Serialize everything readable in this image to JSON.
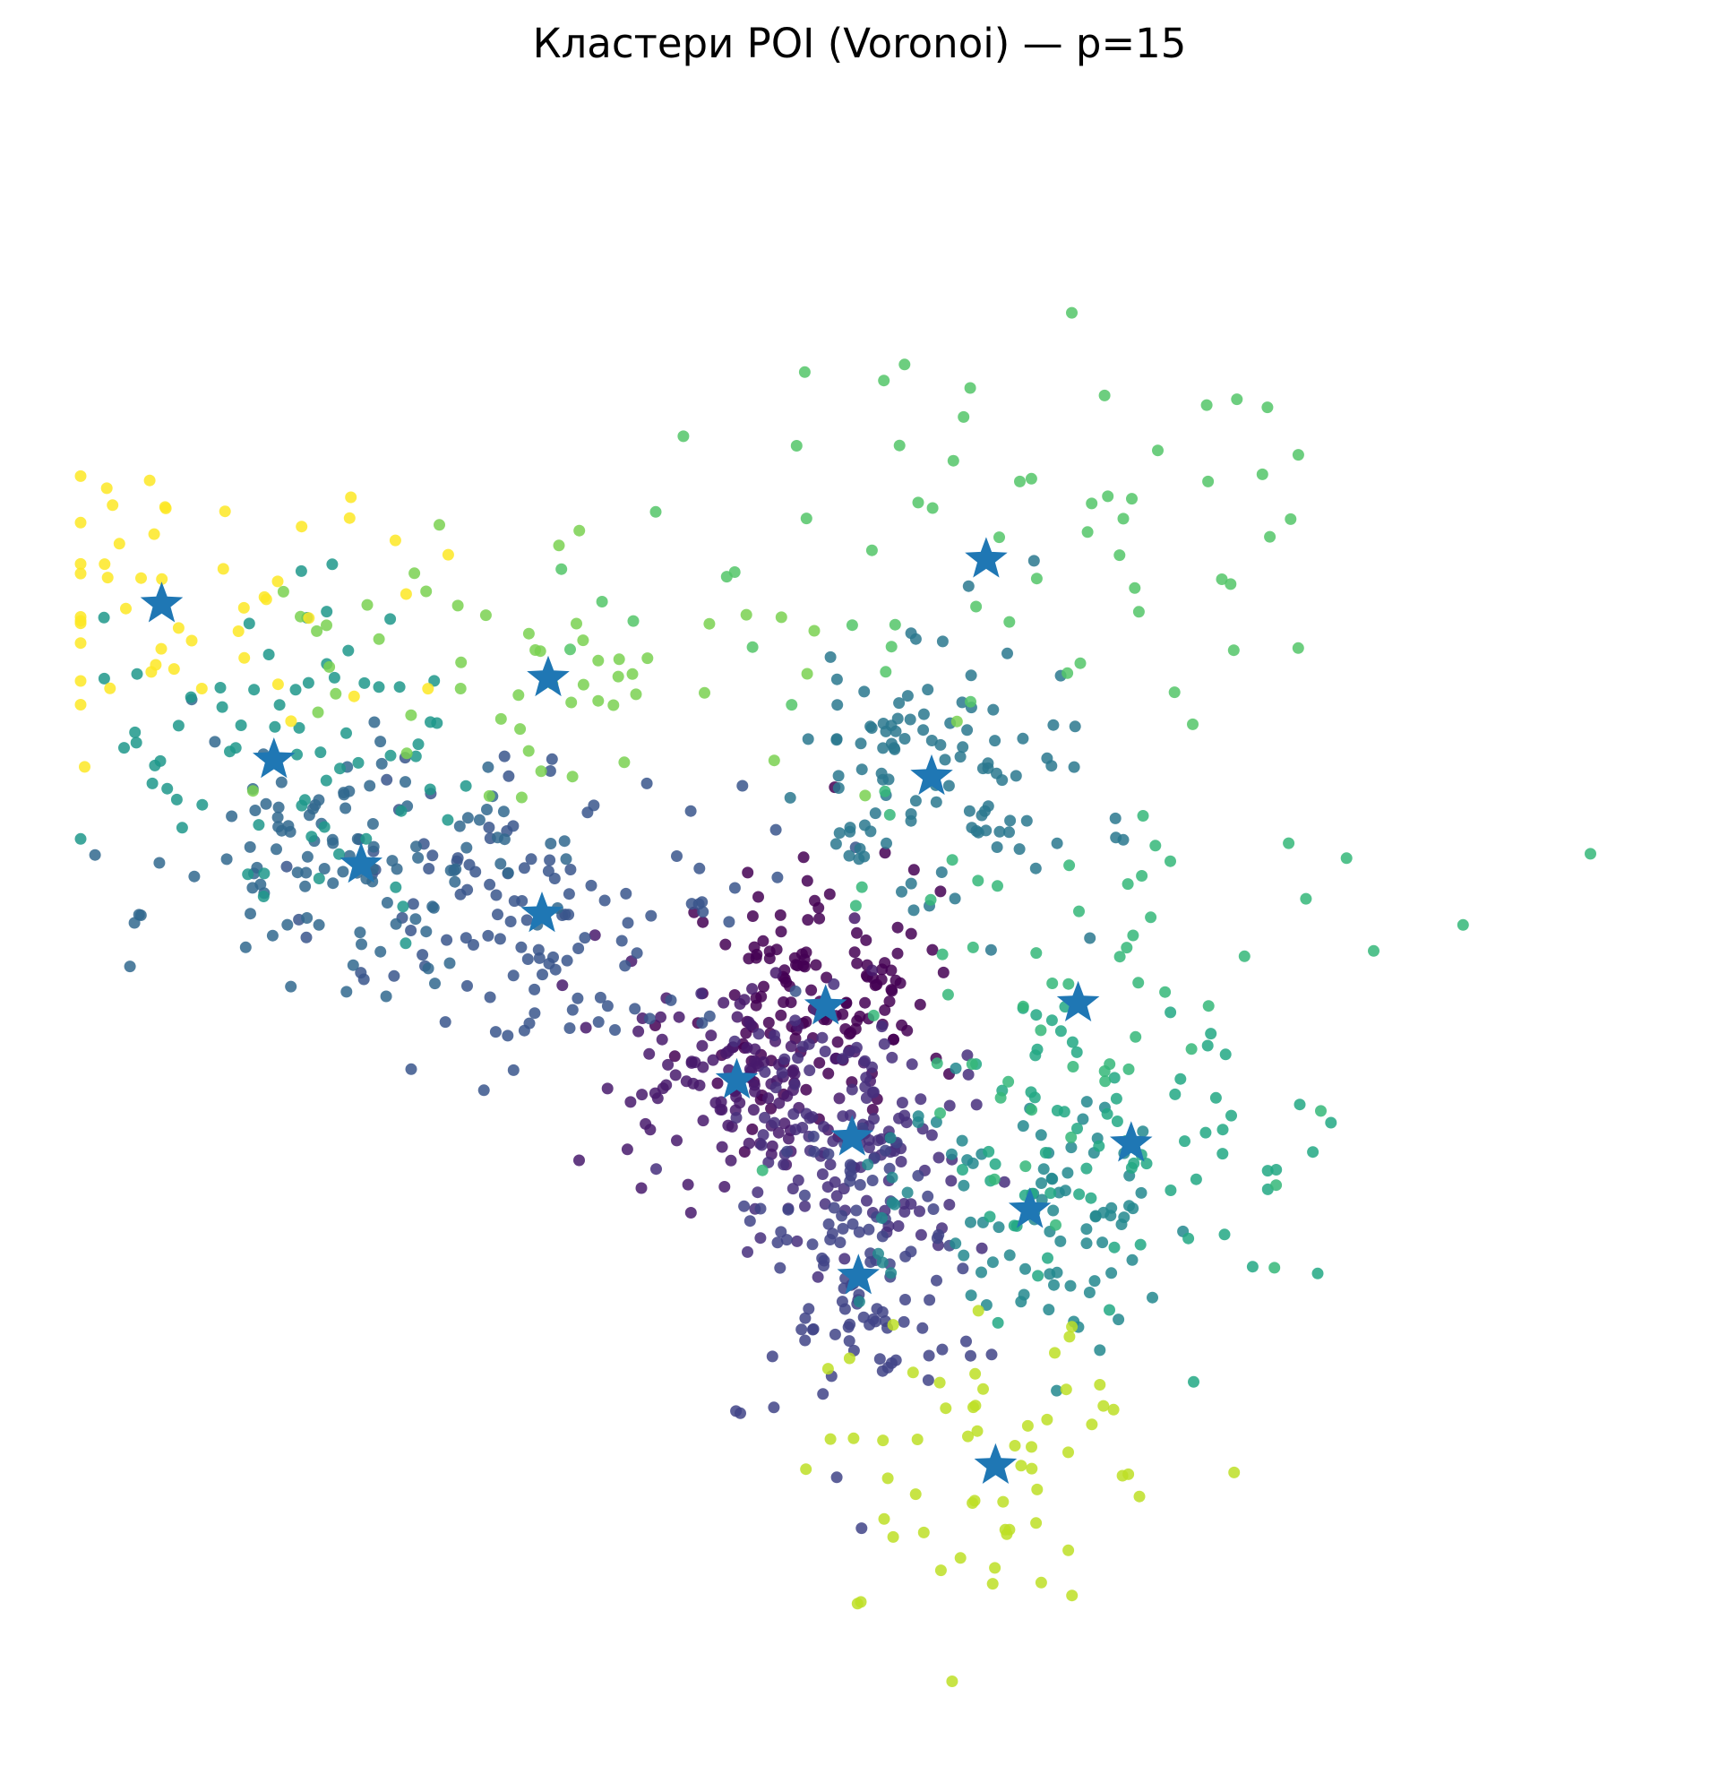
{
  "chart_data": {
    "type": "scatter",
    "title": "Кластери POI (Voronoi) — p=15",
    "xlabel": "",
    "ylabel": "",
    "axes_visible": false,
    "grid": false,
    "legend": "none",
    "point_color": "viridis by cluster",
    "center_marker": "star",
    "center_color": "#1f77b4",
    "xlim": [
      0,
      1
    ],
    "ylim": [
      0,
      1
    ],
    "centers": [
      {
        "cluster": 0,
        "x": 0.478,
        "y": 0.44
      },
      {
        "cluster": 1,
        "x": 0.421,
        "y": 0.392
      },
      {
        "cluster": 2,
        "x": 0.495,
        "y": 0.355
      },
      {
        "cluster": 3,
        "x": 0.499,
        "y": 0.265
      },
      {
        "cluster": 4,
        "x": 0.296,
        "y": 0.5
      },
      {
        "cluster": 5,
        "x": 0.18,
        "y": 0.532
      },
      {
        "cluster": 6,
        "x": 0.546,
        "y": 0.589
      },
      {
        "cluster": 7,
        "x": 0.609,
        "y": 0.308
      },
      {
        "cluster": 8,
        "x": 0.124,
        "y": 0.6
      },
      {
        "cluster": 9,
        "x": 0.674,
        "y": 0.351
      },
      {
        "cluster": 10,
        "x": 0.64,
        "y": 0.442
      },
      {
        "cluster": 11,
        "x": 0.581,
        "y": 0.73
      },
      {
        "cluster": 12,
        "x": 0.3,
        "y": 0.653
      },
      {
        "cluster": 13,
        "x": 0.587,
        "y": 0.142
      },
      {
        "cluster": 14,
        "x": 0.052,
        "y": 0.701
      }
    ],
    "clusters": [
      {
        "id": 0,
        "color": "#440154",
        "n": 150,
        "spread": [
          0.042,
          0.038
        ]
      },
      {
        "id": 1,
        "color": "#481a6c",
        "n": 110,
        "spread": [
          0.04,
          0.034
        ]
      },
      {
        "id": 2,
        "color": "#472f7d",
        "n": 130,
        "spread": [
          0.04,
          0.048
        ]
      },
      {
        "id": 3,
        "color": "#414487",
        "n": 110,
        "spread": [
          0.032,
          0.05
        ]
      },
      {
        "id": 4,
        "color": "#39568c",
        "n": 120,
        "spread": [
          0.07,
          0.05
        ]
      },
      {
        "id": 5,
        "color": "#31688e",
        "n": 110,
        "spread": [
          0.065,
          0.035
        ]
      },
      {
        "id": 6,
        "color": "#2a788e",
        "n": 110,
        "spread": [
          0.05,
          0.05
        ]
      },
      {
        "id": 7,
        "color": "#23888e",
        "n": 90,
        "spread": [
          0.05,
          0.045
        ]
      },
      {
        "id": 8,
        "color": "#1f988b",
        "n": 70,
        "spread": [
          0.06,
          0.05
        ]
      },
      {
        "id": 9,
        "color": "#22a884",
        "n": 70,
        "spread": [
          0.07,
          0.05
        ]
      },
      {
        "id": 10,
        "color": "#35b779",
        "n": 60,
        "spread": [
          0.09,
          0.08
        ]
      },
      {
        "id": 11,
        "color": "#54c568",
        "n": 60,
        "spread": [
          0.14,
          0.06
        ]
      },
      {
        "id": 12,
        "color": "#7ad151",
        "n": 55,
        "spread": [
          0.11,
          0.05
        ]
      },
      {
        "id": 13,
        "color": "#bddf26",
        "n": 60,
        "spread": [
          0.05,
          0.06
        ]
      },
      {
        "id": 14,
        "color": "#fde725",
        "n": 50,
        "spread": [
          0.07,
          0.05
        ]
      }
    ]
  }
}
